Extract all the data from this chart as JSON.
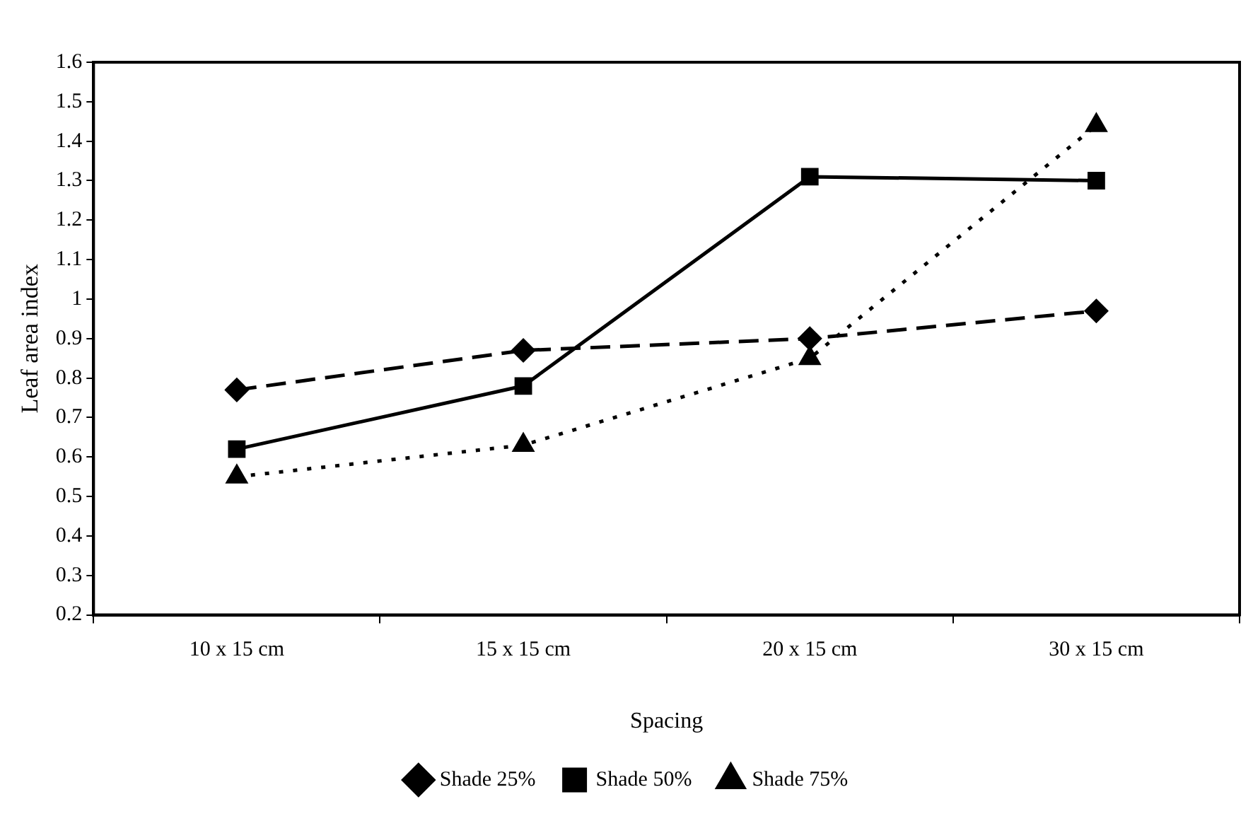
{
  "chart_data": {
    "type": "line",
    "xlabel": "Spacing",
    "ylabel": "Leaf area index",
    "categories": [
      "10 x 15 cm",
      "15 x 15 cm",
      "20 x 15 cm",
      "30 x 15 cm"
    ],
    "series": [
      {
        "name": "Shade 25%",
        "color": "#000000",
        "marker": "diamond",
        "line_style": "dashed",
        "values": [
          0.77,
          0.87,
          0.9,
          0.97
        ]
      },
      {
        "name": "Shade 50%",
        "color": "#000000",
        "marker": "square",
        "line_style": "solid",
        "values": [
          0.62,
          0.78,
          1.31,
          1.3
        ]
      },
      {
        "name": "Shade 75%",
        "color": "#000000",
        "marker": "triangle",
        "line_style": "dotted",
        "values": [
          0.55,
          0.63,
          0.85,
          1.44
        ]
      }
    ],
    "ylim": [
      0.2,
      1.6
    ],
    "yticks": [
      0.2,
      0.3,
      0.4,
      0.5,
      0.6,
      0.7,
      0.8,
      0.9,
      1,
      1.1,
      1.2,
      1.3,
      1.4,
      1.5,
      1.6
    ],
    "grid": false,
    "legend": "bottom"
  }
}
